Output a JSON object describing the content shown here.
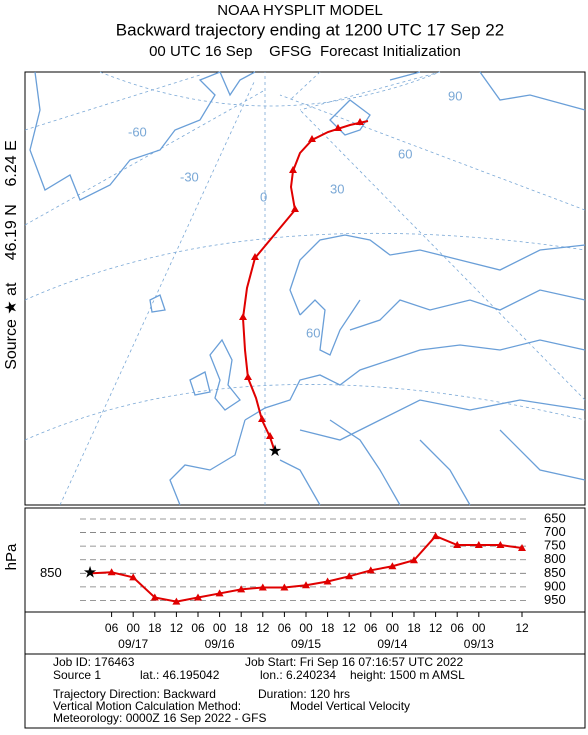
{
  "header": {
    "title": "NOAA HYSPLIT MODEL",
    "subtitle": "Backward trajectory ending at 1200 UTC 17 Sep 22",
    "line3": "00 UTC 16 Sep    GFSG  Forecast Initialization"
  },
  "side_label": "Source ★ at     46.19 N    6.24 E",
  "map": {
    "grid_labels": [
      "-60",
      "-30",
      "0",
      "30",
      "60",
      "90",
      "60"
    ]
  },
  "chart_data": {
    "type": "line",
    "y_label": "hPa",
    "x": [
      0,
      -6,
      -12,
      -18,
      -24,
      -30,
      -36,
      -42,
      -48,
      -54,
      -60,
      -66,
      -72,
      -78,
      -84,
      -90,
      -96,
      -102,
      -108,
      -114,
      -120
    ],
    "series": [
      {
        "color": "#e00000",
        "values": [
          850,
          846,
          865,
          939,
          954,
          939,
          924,
          909,
          902,
          902,
          894,
          880,
          861,
          839,
          824,
          802,
          713,
          746,
          746,
          746,
          757
        ]
      }
    ],
    "start_level": 850,
    "xlim": [
      0,
      -120
    ],
    "xticks": [
      {
        "value": -6,
        "label": "06"
      },
      {
        "value": -12,
        "label": "00"
      },
      {
        "value": -18,
        "label": "18"
      },
      {
        "value": -24,
        "label": "12"
      },
      {
        "value": -30,
        "label": "06"
      },
      {
        "value": -36,
        "label": "00"
      },
      {
        "value": -42,
        "label": "18"
      },
      {
        "value": -48,
        "label": "12"
      },
      {
        "value": -54,
        "label": "06"
      },
      {
        "value": -60,
        "label": "00"
      },
      {
        "value": -66,
        "label": "18"
      },
      {
        "value": -72,
        "label": "12"
      },
      {
        "value": -78,
        "label": "06"
      },
      {
        "value": -84,
        "label": "00"
      },
      {
        "value": -90,
        "label": "18"
      },
      {
        "value": -96,
        "label": "12"
      },
      {
        "value": -102,
        "label": "06"
      },
      {
        "value": -108,
        "label": "00"
      },
      {
        "value": -120,
        "label": "12"
      }
    ],
    "date_labels": [
      {
        "value": -12,
        "label": "09/17"
      },
      {
        "value": -36,
        "label": "09/16"
      },
      {
        "value": -60,
        "label": "09/15"
      },
      {
        "value": -84,
        "label": "09/14"
      },
      {
        "value": -108,
        "label": "09/13"
      }
    ],
    "ylim": [
      985,
      617
    ],
    "yticks": [
      650,
      700,
      750,
      800,
      850,
      900,
      950
    ],
    "grid": true
  },
  "footer": {
    "job_id": "Job ID: 176463",
    "job_start": "Job Start: Fri Sep 16 07:16:57 UTC 2022",
    "source": "Source 1",
    "lat": "lat.: 46.195042",
    "lon": "lon.: 6.240234",
    "height": "height: 1500 m AMSL",
    "direction": "Trajectory Direction: Backward",
    "duration": "Duration: 120 hrs",
    "vertical": "Vertical Motion Calculation Method:",
    "vertical_method": "Model Vertical Velocity",
    "meteorology": "Meteorology: 0000Z 16 Sep 2022 - GFS"
  }
}
